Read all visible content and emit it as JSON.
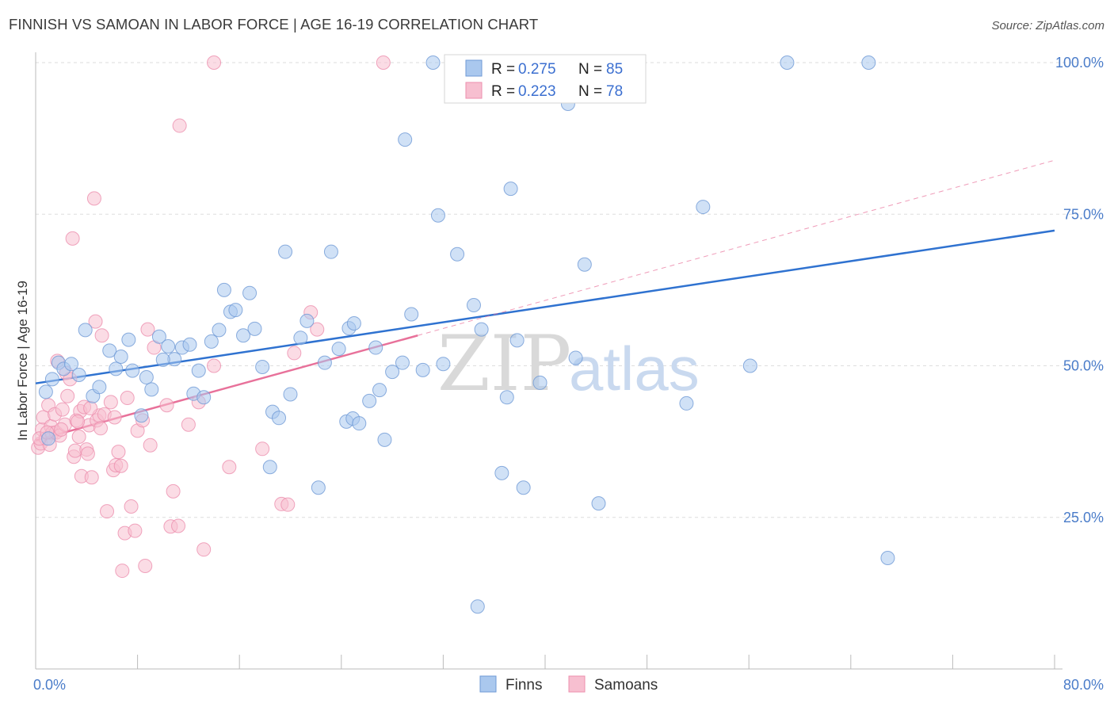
{
  "title": "FINNISH VS SAMOAN IN LABOR FORCE | AGE 16-19 CORRELATION CHART",
  "source": "Source: ZipAtlas.com",
  "watermark": {
    "zip": "ZIP",
    "atlas": "atlas"
  },
  "legend": {
    "finns": {
      "r_label": "R = ",
      "r_value": "0.275",
      "n_label": "N = ",
      "n_value": "85"
    },
    "samoans": {
      "r_label": "R = ",
      "r_value": "0.223",
      "n_label": "N = ",
      "n_value": "78"
    }
  },
  "colors": {
    "finns_fill": "#aac8ee",
    "finns_stroke": "#6f9ad6",
    "finns_line": "#2f72d0",
    "samoans_fill": "#f7bfd0",
    "samoans_stroke": "#ec8fae",
    "samoans_line": "#e8719a",
    "grid": "#dddddd",
    "axis_label": "#4a7cc9"
  },
  "chart_data": {
    "type": "scatter",
    "title": "FINNISH VS SAMOAN IN LABOR FORCE | AGE 16-19 CORRELATION CHART",
    "xlabel": "",
    "ylabel": "In Labor Force | Age 16-19",
    "xlim": [
      0,
      80
    ],
    "ylim": [
      0,
      105
    ],
    "x_tick_labels": [
      "0.0%",
      "80.0%"
    ],
    "y_tick_labels": [
      "25.0%",
      "50.0%",
      "75.0%",
      "100.0%"
    ],
    "y_ticks": [
      25,
      50,
      75,
      100
    ],
    "grid": true,
    "legend_position": "top-center",
    "series": [
      {
        "name": "Finns",
        "points": [
          [
            0.8,
            45.7
          ],
          [
            1.0,
            38.0
          ],
          [
            1.3,
            47.8
          ],
          [
            1.8,
            50.5
          ],
          [
            2.2,
            49.5
          ],
          [
            2.8,
            50.3
          ],
          [
            3.4,
            48.5
          ],
          [
            3.9,
            55.9
          ],
          [
            4.5,
            45.0
          ],
          [
            5.0,
            46.5
          ],
          [
            5.8,
            52.5
          ],
          [
            6.3,
            49.5
          ],
          [
            6.7,
            51.5
          ],
          [
            7.3,
            54.3
          ],
          [
            7.6,
            49.2
          ],
          [
            8.3,
            41.8
          ],
          [
            8.7,
            48.1
          ],
          [
            9.1,
            46.1
          ],
          [
            9.7,
            54.8
          ],
          [
            10.4,
            53.2
          ],
          [
            10.9,
            51.1
          ],
          [
            11.5,
            53.0
          ],
          [
            12.1,
            53.5
          ],
          [
            12.4,
            45.4
          ],
          [
            12.8,
            49.2
          ],
          [
            13.2,
            44.8
          ],
          [
            13.8,
            54.0
          ],
          [
            14.4,
            55.9
          ],
          [
            14.8,
            62.5
          ],
          [
            15.3,
            58.9
          ],
          [
            15.7,
            59.2
          ],
          [
            16.3,
            55.0
          ],
          [
            16.8,
            62.0
          ],
          [
            17.2,
            56.1
          ],
          [
            17.8,
            49.8
          ],
          [
            18.6,
            42.4
          ],
          [
            19.1,
            41.4
          ],
          [
            18.4,
            33.3
          ],
          [
            19.6,
            68.8
          ],
          [
            20.0,
            45.3
          ],
          [
            20.8,
            54.6
          ],
          [
            21.3,
            57.4
          ],
          [
            22.2,
            29.9
          ],
          [
            22.7,
            50.5
          ],
          [
            23.2,
            68.8
          ],
          [
            23.8,
            52.8
          ],
          [
            24.4,
            40.8
          ],
          [
            24.9,
            41.3
          ],
          [
            24.6,
            56.2
          ],
          [
            25.4,
            40.5
          ],
          [
            26.2,
            44.2
          ],
          [
            26.7,
            53.0
          ],
          [
            27.4,
            37.8
          ],
          [
            28.0,
            49.0
          ],
          [
            28.8,
            50.5
          ],
          [
            29.5,
            58.5
          ],
          [
            30.4,
            49.3
          ],
          [
            31.2,
            100.0
          ],
          [
            31.6,
            74.8
          ],
          [
            32.0,
            50.3
          ],
          [
            33.1,
            68.4
          ],
          [
            34.7,
            10.3
          ],
          [
            34.4,
            60.0
          ],
          [
            36.6,
            32.3
          ],
          [
            37.0,
            44.8
          ],
          [
            37.8,
            54.2
          ],
          [
            37.3,
            79.2
          ],
          [
            38.3,
            29.9
          ],
          [
            39.6,
            47.2
          ],
          [
            41.8,
            93.2
          ],
          [
            42.4,
            51.3
          ],
          [
            43.1,
            66.7
          ],
          [
            44.2,
            27.3
          ],
          [
            47.0,
            100.0
          ],
          [
            51.1,
            43.8
          ],
          [
            52.4,
            76.2
          ],
          [
            56.1,
            50.0
          ],
          [
            59.0,
            100.0
          ],
          [
            65.4,
            100.0
          ],
          [
            66.9,
            18.3
          ],
          [
            29.0,
            87.3
          ],
          [
            27.0,
            46.0
          ],
          [
            10.0,
            51.0
          ],
          [
            35.0,
            56.0
          ],
          [
            25.0,
            57.0
          ]
        ]
      },
      {
        "name": "Samoans",
        "points": [
          [
            0.2,
            36.5
          ],
          [
            0.4,
            37.2
          ],
          [
            0.5,
            39.5
          ],
          [
            0.6,
            41.5
          ],
          [
            0.8,
            38.0
          ],
          [
            1.0,
            43.5
          ],
          [
            1.2,
            40.0
          ],
          [
            1.3,
            38.9
          ],
          [
            1.5,
            42.0
          ],
          [
            1.6,
            39.0
          ],
          [
            1.7,
            50.8
          ],
          [
            1.9,
            38.5
          ],
          [
            2.1,
            42.8
          ],
          [
            2.3,
            40.3
          ],
          [
            2.4,
            48.8
          ],
          [
            2.5,
            45.0
          ],
          [
            2.7,
            47.8
          ],
          [
            2.9,
            71.0
          ],
          [
            3.0,
            35.0
          ],
          [
            3.1,
            36.0
          ],
          [
            3.2,
            41.0
          ],
          [
            3.4,
            38.3
          ],
          [
            3.5,
            42.5
          ],
          [
            3.6,
            31.8
          ],
          [
            3.8,
            43.2
          ],
          [
            4.0,
            36.2
          ],
          [
            4.1,
            35.5
          ],
          [
            4.2,
            40.2
          ],
          [
            4.4,
            31.6
          ],
          [
            4.6,
            77.6
          ],
          [
            4.7,
            57.3
          ],
          [
            4.8,
            41.0
          ],
          [
            5.0,
            41.8
          ],
          [
            5.1,
            39.7
          ],
          [
            5.2,
            55.0
          ],
          [
            5.4,
            42.0
          ],
          [
            5.6,
            26.0
          ],
          [
            6.1,
            32.8
          ],
          [
            6.3,
            33.6
          ],
          [
            6.5,
            35.8
          ],
          [
            6.7,
            33.5
          ],
          [
            6.8,
            16.2
          ],
          [
            7.0,
            22.4
          ],
          [
            7.2,
            44.7
          ],
          [
            7.5,
            26.8
          ],
          [
            7.8,
            22.8
          ],
          [
            8.0,
            39.3
          ],
          [
            8.6,
            17.0
          ],
          [
            8.8,
            56.0
          ],
          [
            9.0,
            36.9
          ],
          [
            9.3,
            53.0
          ],
          [
            10.3,
            43.5
          ],
          [
            10.6,
            23.5
          ],
          [
            10.8,
            29.3
          ],
          [
            11.2,
            23.6
          ],
          [
            11.3,
            89.6
          ],
          [
            12.0,
            40.3
          ],
          [
            12.8,
            44.0
          ],
          [
            13.2,
            19.7
          ],
          [
            14.0,
            50.0
          ],
          [
            15.2,
            33.3
          ],
          [
            17.8,
            36.3
          ],
          [
            19.3,
            27.2
          ],
          [
            19.8,
            27.1
          ],
          [
            20.3,
            52.1
          ],
          [
            21.6,
            58.8
          ],
          [
            22.1,
            56.0
          ],
          [
            14.0,
            100.0
          ],
          [
            27.3,
            100.0
          ],
          [
            6.2,
            41.5
          ],
          [
            2.0,
            39.5
          ],
          [
            1.1,
            37.0
          ],
          [
            0.3,
            38.0
          ],
          [
            3.3,
            40.8
          ],
          [
            5.9,
            44.0
          ],
          [
            8.4,
            41.0
          ],
          [
            0.9,
            39.0
          ],
          [
            4.3,
            43.0
          ]
        ]
      }
    ],
    "trendlines": [
      {
        "series": "Finns",
        "x": [
          0,
          80
        ],
        "y": [
          47.1,
          72.3
        ],
        "style": "solid"
      },
      {
        "series": "Samoans",
        "x": [
          0,
          30
        ],
        "y": [
          37.7,
          55.0
        ],
        "style": "solid"
      },
      {
        "series": "Samoans",
        "x": [
          30,
          80
        ],
        "y": [
          55.0,
          83.9
        ],
        "style": "dashed"
      }
    ]
  }
}
